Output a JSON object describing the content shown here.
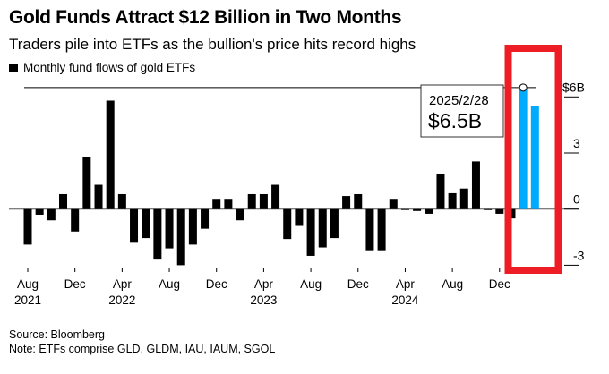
{
  "chart_data": {
    "type": "bar",
    "title": "Gold Funds Attract $12 Billion in Two Months",
    "subtitle": "Traders pile into ETFs as the bullion's price hits record highs",
    "legend": [
      {
        "name": "Monthly fund flows of gold ETFs",
        "color": "#000000"
      }
    ],
    "legend_position": "top-left",
    "ylabel": "",
    "ylim": [
      -3.5,
      7
    ],
    "yticks": [
      {
        "value": 6,
        "label": "$6B"
      },
      {
        "value": 3,
        "label": "3"
      },
      {
        "value": 0,
        "label": "0"
      },
      {
        "value": -3,
        "label": "-3"
      }
    ],
    "yaxis_side": "right",
    "grid": false,
    "xticks": [
      {
        "month": "2021-08",
        "label": "Aug",
        "year": "2021"
      },
      {
        "month": "2021-12",
        "label": "Dec",
        "year": ""
      },
      {
        "month": "2022-04",
        "label": "Apr",
        "year": "2022"
      },
      {
        "month": "2022-08",
        "label": "Aug",
        "year": ""
      },
      {
        "month": "2022-12",
        "label": "Dec",
        "year": ""
      },
      {
        "month": "2023-04",
        "label": "Apr",
        "year": "2023"
      },
      {
        "month": "2023-08",
        "label": "Aug",
        "year": ""
      },
      {
        "month": "2023-12",
        "label": "Dec",
        "year": ""
      },
      {
        "month": "2024-04",
        "label": "Apr",
        "year": "2024"
      },
      {
        "month": "2024-08",
        "label": "Aug",
        "year": ""
      },
      {
        "month": "2024-12",
        "label": "Dec",
        "year": ""
      }
    ],
    "months": [
      "2021-08",
      "2021-09",
      "2021-10",
      "2021-11",
      "2021-12",
      "2022-01",
      "2022-02",
      "2022-03",
      "2022-04",
      "2022-05",
      "2022-06",
      "2022-07",
      "2022-08",
      "2022-09",
      "2022-10",
      "2022-11",
      "2022-12",
      "2023-01",
      "2023-02",
      "2023-03",
      "2023-04",
      "2023-05",
      "2023-06",
      "2023-07",
      "2023-08",
      "2023-09",
      "2023-10",
      "2023-11",
      "2023-12",
      "2024-01",
      "2024-02",
      "2024-03",
      "2024-04",
      "2024-05",
      "2024-06",
      "2024-07",
      "2024-08",
      "2024-09",
      "2024-10",
      "2024-11",
      "2024-12",
      "2025-01",
      "2025-02",
      "2025-03"
    ],
    "values": [
      -1.9,
      -0.3,
      -0.6,
      0.8,
      -1.2,
      2.8,
      1.3,
      5.8,
      0.8,
      -1.8,
      -1.55,
      -2.7,
      -2.1,
      -3.0,
      -1.9,
      -1.05,
      0.55,
      0.55,
      -0.6,
      0.8,
      0.8,
      1.3,
      -1.6,
      -0.9,
      -2.5,
      -2.05,
      -1.55,
      0.7,
      0.8,
      -2.2,
      -2.2,
      0.55,
      -0.02,
      -0.1,
      -0.25,
      1.9,
      0.85,
      1.1,
      2.55,
      -0.05,
      -0.25,
      -0.5,
      6.5,
      5.5
    ],
    "highlight_months": [
      "2025-02",
      "2025-03"
    ],
    "colors": {
      "bar": "#000000",
      "highlight": "#00aaff",
      "annotation_box": "#ee1c24"
    },
    "annotation": {
      "date": "2025/2/28",
      "value": "$6.5B",
      "reference_value": 6.5
    }
  },
  "footer": {
    "source": "Source: Bloomberg",
    "note": "Note: ETFs comprise GLD, GLDM, IAU, IAUM, SGOL"
  }
}
